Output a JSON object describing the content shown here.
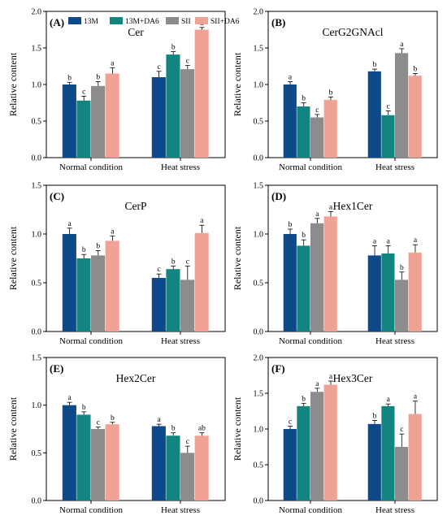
{
  "figure": {
    "ylabel": "Relative content",
    "categories": [
      "Normal condition",
      "Heat stress"
    ],
    "groups": [
      {
        "name": "13M",
        "color": "#0e4a8a"
      },
      {
        "name": "13M+DA6",
        "color": "#138581"
      },
      {
        "name": "SII",
        "color": "#8c8c8c"
      },
      {
        "name": "SII+DA6",
        "color": "#f0a395"
      }
    ]
  },
  "chart_data": [
    {
      "type": "bar",
      "panel": "(A)",
      "title": "Cer",
      "ylabel": "Relative content",
      "categories": [
        "Normal condition",
        "Heat stress"
      ],
      "ylim": [
        0,
        2.0
      ],
      "yticks": [
        "0.0",
        "0.5",
        "1.0",
        "1.5",
        "2.0"
      ],
      "legend": "top-left",
      "grid": false,
      "series": [
        {
          "name": "13M",
          "values": [
            1.0,
            1.1
          ],
          "errors": [
            0.03,
            0.08
          ],
          "letters": [
            "b",
            "c"
          ]
        },
        {
          "name": "13M+DA6",
          "values": [
            0.78,
            1.41
          ],
          "errors": [
            0.06,
            0.04
          ],
          "letters": [
            "c",
            "b"
          ]
        },
        {
          "name": "SII",
          "values": [
            0.98,
            1.21
          ],
          "errors": [
            0.06,
            0.05
          ],
          "letters": [
            "b",
            "c"
          ]
        },
        {
          "name": "SII+DA6",
          "values": [
            1.15,
            1.75
          ],
          "errors": [
            0.08,
            0.03
          ],
          "letters": [
            "a",
            "a"
          ]
        }
      ]
    },
    {
      "type": "bar",
      "panel": "(B)",
      "title": "CerG2GNAcl",
      "ylabel": "Relative content",
      "categories": [
        "Normal condition",
        "Heat stress"
      ],
      "ylim": [
        0,
        2.0
      ],
      "yticks": [
        "0.0",
        "0.5",
        "1.0",
        "1.5",
        "2.0"
      ],
      "grid": false,
      "series": [
        {
          "name": "13M",
          "values": [
            1.0,
            1.18
          ],
          "errors": [
            0.04,
            0.03
          ],
          "letters": [
            "a",
            "b"
          ]
        },
        {
          "name": "13M+DA6",
          "values": [
            0.7,
            0.58
          ],
          "errors": [
            0.05,
            0.06
          ],
          "letters": [
            "b",
            "c"
          ]
        },
        {
          "name": "SII",
          "values": [
            0.55,
            1.43
          ],
          "errors": [
            0.04,
            0.06
          ],
          "letters": [
            "c",
            "a"
          ]
        },
        {
          "name": "SII+DA6",
          "values": [
            0.79,
            1.12
          ],
          "errors": [
            0.04,
            0.03
          ],
          "letters": [
            "b",
            "b"
          ]
        }
      ]
    },
    {
      "type": "bar",
      "panel": "(C)",
      "title": "CerP",
      "ylabel": "Relative content",
      "categories": [
        "Normal condition",
        "Heat stress"
      ],
      "ylim": [
        0,
        1.5
      ],
      "yticks": [
        "0.0",
        "0.5",
        "1.0",
        "1.5"
      ],
      "grid": false,
      "series": [
        {
          "name": "13M",
          "values": [
            1.0,
            0.55
          ],
          "errors": [
            0.06,
            0.04
          ],
          "letters": [
            "a",
            "c"
          ]
        },
        {
          "name": "13M+DA6",
          "values": [
            0.75,
            0.64
          ],
          "errors": [
            0.04,
            0.03
          ],
          "letters": [
            "b",
            "b"
          ]
        },
        {
          "name": "SII",
          "values": [
            0.78,
            0.53
          ],
          "errors": [
            0.05,
            0.14
          ],
          "letters": [
            "b",
            "c"
          ]
        },
        {
          "name": "SII+DA6",
          "values": [
            0.93,
            1.01
          ],
          "errors": [
            0.05,
            0.08
          ],
          "letters": [
            "a",
            "a"
          ]
        }
      ]
    },
    {
      "type": "bar",
      "panel": "(D)",
      "title": "Hex1Cer",
      "ylabel": "Relative content",
      "categories": [
        "Normal condition",
        "Heat stress"
      ],
      "ylim": [
        0,
        1.5
      ],
      "yticks": [
        "0.0",
        "0.5",
        "1.0",
        "1.5"
      ],
      "grid": false,
      "series": [
        {
          "name": "13M",
          "values": [
            1.0,
            0.78
          ],
          "errors": [
            0.05,
            0.1
          ],
          "letters": [
            "b",
            "a"
          ]
        },
        {
          "name": "13M+DA6",
          "values": [
            0.88,
            0.8
          ],
          "errors": [
            0.06,
            0.08
          ],
          "letters": [
            "b",
            "a"
          ]
        },
        {
          "name": "SII",
          "values": [
            1.11,
            0.53
          ],
          "errors": [
            0.05,
            0.08
          ],
          "letters": [
            "a",
            "b"
          ]
        },
        {
          "name": "SII+DA6",
          "values": [
            1.18,
            0.81
          ],
          "errors": [
            0.05,
            0.08
          ],
          "letters": [
            "a",
            "a"
          ]
        }
      ]
    },
    {
      "type": "bar",
      "panel": "(E)",
      "title": "Hex2Cer",
      "ylabel": "Relative content",
      "categories": [
        "Normal condition",
        "Heat stress"
      ],
      "ylim": [
        0,
        1.5
      ],
      "yticks": [
        "0.0",
        "0.5",
        "1.0",
        "1.5"
      ],
      "grid": false,
      "series": [
        {
          "name": "13M",
          "values": [
            1.0,
            0.78
          ],
          "errors": [
            0.03,
            0.02
          ],
          "letters": [
            "a",
            "a"
          ]
        },
        {
          "name": "13M+DA6",
          "values": [
            0.9,
            0.68
          ],
          "errors": [
            0.03,
            0.03
          ],
          "letters": [
            "b",
            "b"
          ]
        },
        {
          "name": "SII",
          "values": [
            0.75,
            0.5
          ],
          "errors": [
            0.02,
            0.07
          ],
          "letters": [
            "c",
            "c"
          ]
        },
        {
          "name": "SII+DA6",
          "values": [
            0.8,
            0.68
          ],
          "errors": [
            0.02,
            0.03
          ],
          "letters": [
            "b",
            "ab"
          ]
        }
      ]
    },
    {
      "type": "bar",
      "panel": "(F)",
      "title": "Hex3Cer",
      "ylabel": "Relative content",
      "categories": [
        "Normal condition",
        "Heat stress"
      ],
      "ylim": [
        0,
        2.0
      ],
      "yticks": [
        "0.0",
        "0.5",
        "1.0",
        "1.5",
        "2.0"
      ],
      "grid": false,
      "series": [
        {
          "name": "13M",
          "values": [
            1.0,
            1.07
          ],
          "errors": [
            0.04,
            0.05
          ],
          "letters": [
            "c",
            "b"
          ]
        },
        {
          "name": "13M+DA6",
          "values": [
            1.32,
            1.32
          ],
          "errors": [
            0.04,
            0.03
          ],
          "letters": [
            "b",
            "a"
          ]
        },
        {
          "name": "SII",
          "values": [
            1.52,
            0.75
          ],
          "errors": [
            0.05,
            0.18
          ],
          "letters": [
            "a",
            "c"
          ]
        },
        {
          "name": "SII+DA6",
          "values": [
            1.62,
            1.21
          ],
          "errors": [
            0.05,
            0.18
          ],
          "letters": [
            "a",
            "a"
          ]
        }
      ]
    }
  ]
}
